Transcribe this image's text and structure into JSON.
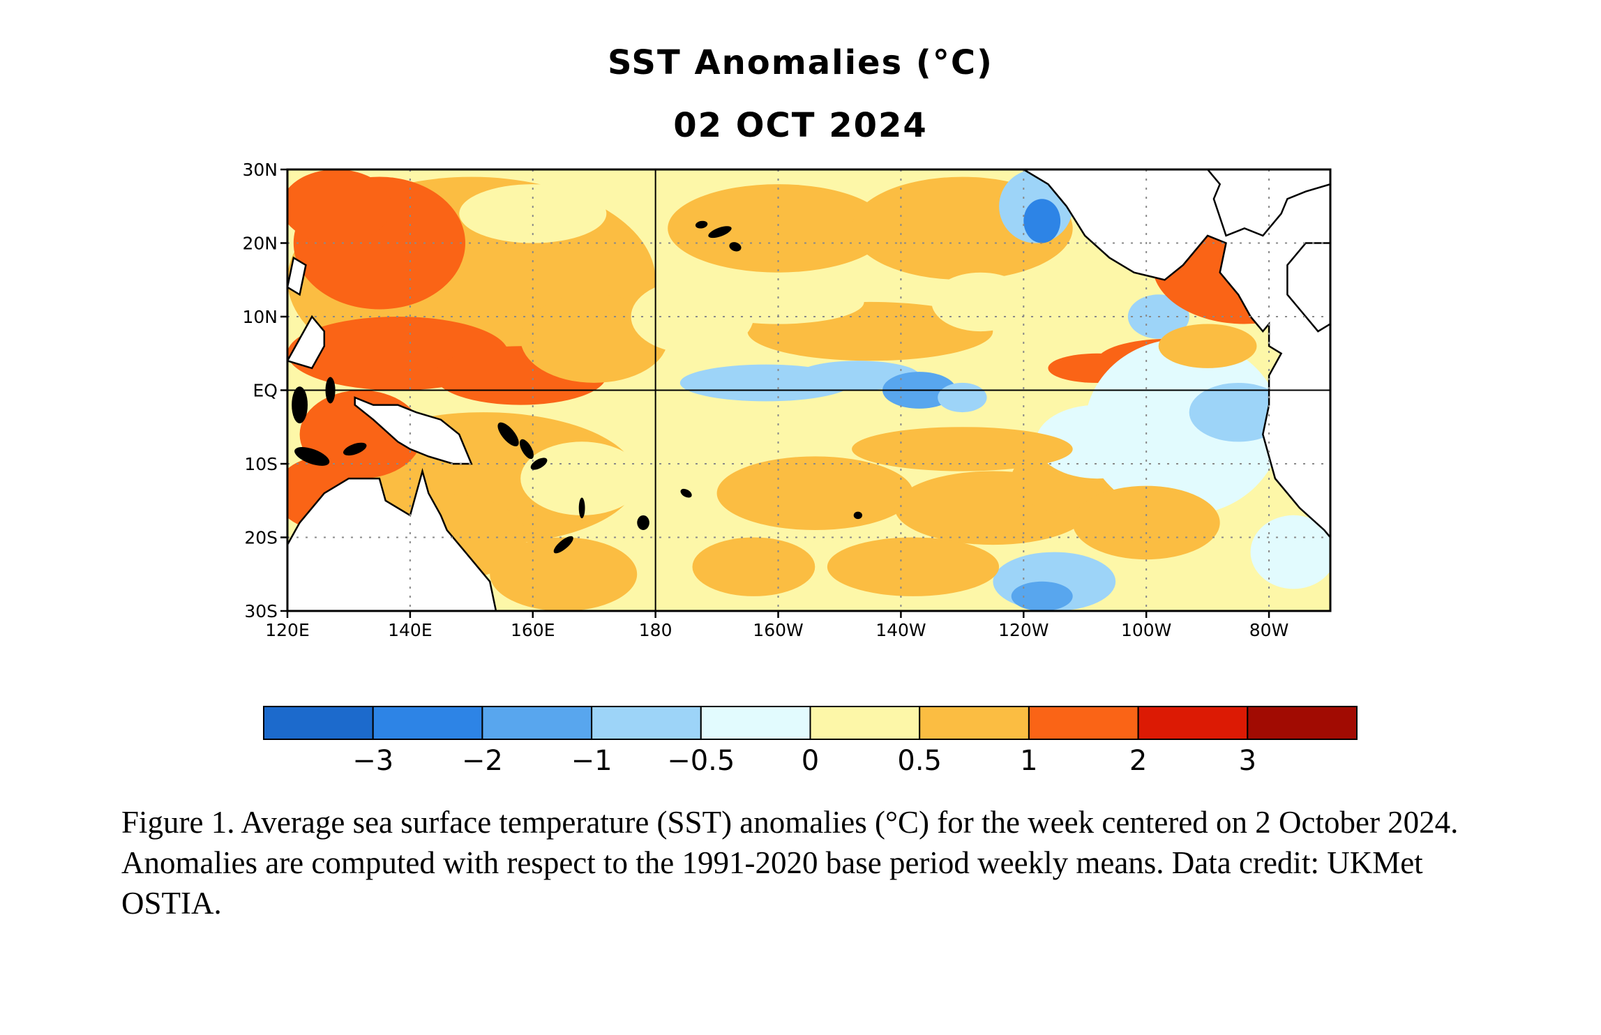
{
  "figure": {
    "title": "SST Anomalies (°C)",
    "date": "02 OCT 2024",
    "caption": "Figure 1. Average sea surface temperature (SST) anomalies (°C) for the week centered on 2 October 2024.  Anomalies are computed with respect to the 1991-2020 base period weekly means. Data credit: UKMet OSTIA."
  },
  "map": {
    "lon_range": [
      120,
      290
    ],
    "lat_range": [
      -30,
      30
    ],
    "lon_ticks": [
      {
        "value": 120,
        "label": "120E"
      },
      {
        "value": 140,
        "label": "140E"
      },
      {
        "value": 160,
        "label": "160E"
      },
      {
        "value": 180,
        "label": "180"
      },
      {
        "value": 200,
        "label": "160W"
      },
      {
        "value": 220,
        "label": "140W"
      },
      {
        "value": 240,
        "label": "120W"
      },
      {
        "value": 260,
        "label": "100W"
      },
      {
        "value": 280,
        "label": "80W"
      }
    ],
    "lat_ticks": [
      {
        "value": 30,
        "label": "30N"
      },
      {
        "value": 20,
        "label": "20N"
      },
      {
        "value": 10,
        "label": "10N"
      },
      {
        "value": 0,
        "label": "EQ"
      },
      {
        "value": -10,
        "label": "10S"
      },
      {
        "value": -20,
        "label": "20S"
      },
      {
        "value": -30,
        "label": "30S"
      }
    ],
    "reference_lines": {
      "equator": 0,
      "dateline": 180
    }
  },
  "colorbar": {
    "colors": [
      "#1c6acc",
      "#2d84e6",
      "#58a6ee",
      "#9dd4f8",
      "#e2fbfe",
      "#fdf7a8",
      "#fbbd42",
      "#fa6416",
      "#dc1a04",
      "#a10b02"
    ],
    "labels": [
      "−3",
      "−2",
      "−1",
      "−0.5",
      "0",
      "0.5",
      "1",
      "2",
      "3"
    ]
  },
  "land_color": "#ffffff",
  "coast_color": "#000000"
}
